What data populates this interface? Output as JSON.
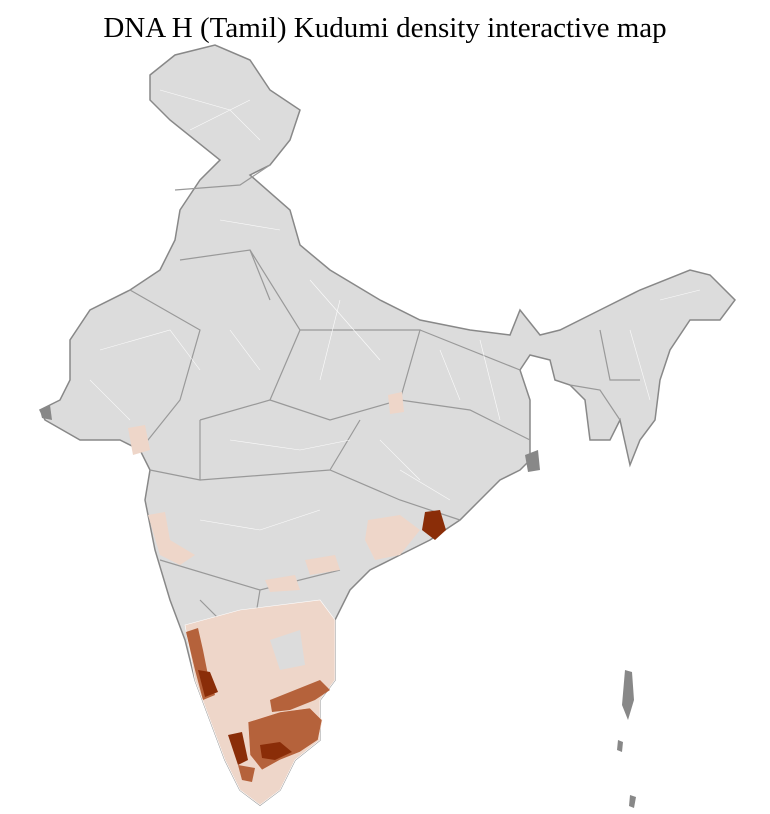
{
  "title": "DNA H (Tamil) Kudumi density interactive map",
  "colors": {
    "no_data": "#dcdcdc",
    "border": "#888888",
    "district_line": "#ffffff",
    "low": "#eed6c9",
    "medium": "#b5623b",
    "high": "#8a2d08"
  }
}
